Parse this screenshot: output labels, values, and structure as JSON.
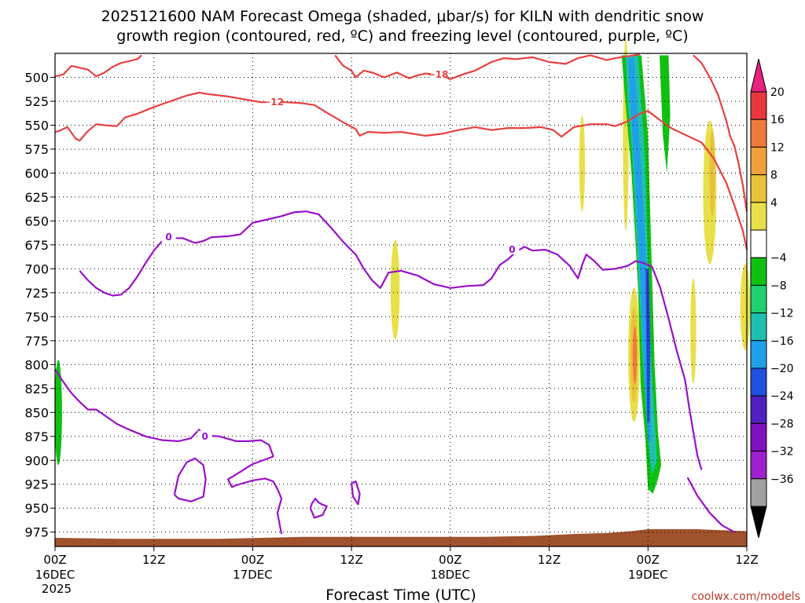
{
  "chart_data": {
    "type": "contour",
    "title_line1": "2025121600 NAM Forecast Omega (shaded, μbar/s) for KILN with dendritic snow",
    "title_line2": "growth region (contoured, red, ºC) and freezing level (contoured, purple, ºC)",
    "xlabel": "Forecast Time (UTC)",
    "credit": "coolwx.com/models",
    "year_label": "2025",
    "x_range_hours": [
      0,
      84
    ],
    "y_range_hPa": [
      475,
      990
    ],
    "y_scale": "pressure",
    "grid": "dotted",
    "x_ticks": [
      {
        "hour": 0,
        "label": "00Z",
        "sub": "16DEC"
      },
      {
        "hour": 12,
        "label": "12Z",
        "sub": ""
      },
      {
        "hour": 24,
        "label": "00Z",
        "sub": "17DEC"
      },
      {
        "hour": 36,
        "label": "12Z",
        "sub": ""
      },
      {
        "hour": 48,
        "label": "00Z",
        "sub": "18DEC"
      },
      {
        "hour": 60,
        "label": "12Z",
        "sub": ""
      },
      {
        "hour": 72,
        "label": "00Z",
        "sub": "19DEC"
      },
      {
        "hour": 84,
        "label": "12Z",
        "sub": ""
      }
    ],
    "y_ticks": [
      500,
      525,
      550,
      575,
      600,
      625,
      650,
      675,
      700,
      725,
      750,
      775,
      800,
      825,
      850,
      875,
      900,
      925,
      950,
      975
    ],
    "colorbar": {
      "labels": [
        "20",
        "16",
        "12",
        "8",
        "4",
        "−4",
        "−8",
        "−12",
        "−16",
        "−20",
        "−24",
        "−28",
        "−32",
        "−36"
      ],
      "colors": [
        "#e8207e",
        "#e8383d",
        "#f07a3c",
        "#f0a03a",
        "#e8c23a",
        "#e8e04a",
        "#ffffff",
        "#10c010",
        "#20d070",
        "#20c0b0",
        "#20a0e8",
        "#2050e0",
        "#5020c0",
        "#8010c0",
        "#a020d0",
        "#a0a0a0",
        "#000000"
      ]
    },
    "series": [
      {
        "name": "-12",
        "color": "#e84040",
        "contours": [
          [
            [
              0,
              557
            ],
            [
              0.5,
              556
            ],
            [
              1.5,
              552
            ],
            [
              2.5,
              564
            ],
            [
              3,
              566
            ],
            [
              4,
              556
            ],
            [
              5,
              549
            ],
            [
              6,
              550
            ],
            [
              7.5,
              551
            ],
            [
              8.5,
              542
            ],
            [
              10,
              538
            ],
            [
              12,
              531
            ],
            [
              14,
              525
            ],
            [
              16,
              519
            ],
            [
              17.5,
              516
            ],
            [
              19,
              518
            ],
            [
              21,
              520
            ],
            [
              23,
              523
            ],
            [
              25,
              526
            ],
            [
              26.5,
              526
            ],
            [
              28,
              526
            ],
            [
              30,
              527
            ],
            [
              31.5,
              529
            ],
            [
              33,
              537
            ],
            [
              35,
              547
            ],
            [
              36.5,
              554
            ],
            [
              37,
              561
            ],
            [
              38,
              557
            ],
            [
              40,
              558
            ],
            [
              42,
              557
            ],
            [
              45,
              561
            ],
            [
              47,
              559
            ],
            [
              49,
              555
            ],
            [
              51,
              552
            ],
            [
              53,
              555
            ],
            [
              55,
              553
            ],
            [
              57,
              553
            ],
            [
              59,
              552
            ],
            [
              60.5,
              555
            ],
            [
              61.5,
              562
            ],
            [
              63,
              552
            ],
            [
              65,
              549
            ],
            [
              67,
              549
            ],
            [
              68,
              551
            ],
            [
              69.5,
              546
            ],
            [
              71,
              538
            ],
            [
              72,
              535
            ],
            [
              73.5,
              545
            ],
            [
              75,
              554
            ],
            [
              77,
              562
            ],
            [
              78.5,
              568
            ],
            [
              80,
              585
            ],
            [
              81.5,
              610
            ],
            [
              82.5,
              634
            ],
            [
              83.5,
              660
            ],
            [
              84,
              680
            ]
          ]
        ]
      },
      {
        "name": "-18",
        "color": "#e84040",
        "contours": [
          [
            [
              0,
              499
            ],
            [
              1,
              497
            ],
            [
              2,
              488
            ],
            [
              3,
              490
            ],
            [
              4,
              492
            ],
            [
              5,
              499
            ],
            [
              6,
              495
            ],
            [
              7,
              489
            ],
            [
              8,
              485
            ],
            [
              9,
              483
            ],
            [
              10,
              481
            ],
            [
              10.5,
              477
            ]
          ],
          [
            [
              34,
              477
            ],
            [
              35,
              488
            ],
            [
              36,
              493
            ],
            [
              36.5,
              500
            ],
            [
              37.5,
              493
            ],
            [
              38.5,
              495
            ],
            [
              40,
              500
            ],
            [
              41.5,
              495
            ],
            [
              43,
              501
            ],
            [
              44,
              498
            ],
            [
              45,
              496
            ],
            [
              46,
              497
            ],
            [
              47,
              498
            ],
            [
              48,
              502
            ],
            [
              49.5,
              497
            ],
            [
              51,
              493
            ],
            [
              53,
              484
            ],
            [
              54.5,
              480
            ],
            [
              56,
              481
            ],
            [
              58,
              479
            ],
            [
              60,
              484
            ],
            [
              62,
              486
            ],
            [
              63.5,
              480
            ],
            [
              65,
              477
            ],
            [
              67,
              482
            ],
            [
              68,
              480
            ],
            [
              69.5,
              478
            ],
            [
              71,
              476
            ]
          ],
          [
            [
              77.5,
              477
            ],
            [
              78.5,
              485
            ],
            [
              79.5,
              500
            ],
            [
              80.5,
              518
            ],
            [
              81.5,
              545
            ],
            [
              82,
              562
            ],
            [
              82.5,
              572
            ],
            [
              83,
              590
            ],
            [
              83.5,
              612
            ],
            [
              84,
              640
            ]
          ]
        ]
      },
      {
        "name": "0",
        "color": "#9a10c8",
        "contours": [
          [
            [
              0,
              805
            ],
            [
              1,
              818
            ],
            [
              2,
              830
            ],
            [
              3,
              839
            ],
            [
              4,
              847
            ],
            [
              5,
              847
            ],
            [
              6,
              853
            ],
            [
              7.5,
              862
            ],
            [
              9,
              868
            ],
            [
              11,
              875
            ],
            [
              13,
              879
            ],
            [
              15,
              880
            ],
            [
              16.5,
              877
            ],
            [
              17.5,
              868
            ],
            [
              18,
              874
            ],
            [
              20,
              875
            ],
            [
              22,
              880
            ],
            [
              23.5,
              880
            ],
            [
              25,
              879
            ],
            [
              26,
              884
            ],
            [
              26.5,
              896
            ],
            [
              24,
              904
            ],
            [
              22.5,
              912
            ],
            [
              21,
              920
            ],
            [
              21.5,
              928
            ],
            [
              22,
              926
            ],
            [
              24,
              921
            ],
            [
              25.5,
              919
            ],
            [
              26.5,
              922
            ],
            [
              27,
              930
            ],
            [
              27.5,
              940
            ],
            [
              27,
              955
            ],
            [
              27.5,
              977
            ]
          ]
        ]
      },
      {
        "name": "0",
        "color": "#9a10c8",
        "contours": [
          [
            [
              3,
              702
            ],
            [
              4,
              712
            ],
            [
              5,
              720
            ],
            [
              6,
              725
            ],
            [
              7,
              728
            ],
            [
              8,
              727
            ],
            [
              9,
              720
            ],
            [
              10,
              708
            ],
            [
              11,
              694
            ],
            [
              12,
              681
            ],
            [
              13,
              671
            ],
            [
              14,
              668
            ],
            [
              15.5,
              668
            ],
            [
              17,
              673
            ],
            [
              18,
              671
            ],
            [
              19,
              667
            ],
            [
              21,
              666
            ],
            [
              22.5,
              664
            ],
            [
              24,
              652
            ],
            [
              26,
              648
            ],
            [
              27.5,
              645
            ],
            [
              29,
              641
            ],
            [
              30.5,
              640
            ],
            [
              32,
              643
            ],
            [
              33.5,
              657
            ],
            [
              35,
              672
            ],
            [
              36.5,
              685
            ],
            [
              37.5,
              700
            ],
            [
              38.5,
              712
            ],
            [
              39.5,
              720
            ],
            [
              40.5,
              704
            ],
            [
              42,
              702
            ],
            [
              44,
              707
            ],
            [
              46,
              716
            ],
            [
              48,
              720
            ],
            [
              50,
              718
            ],
            [
              52,
              717
            ],
            [
              53,
              710
            ],
            [
              54,
              696
            ],
            [
              55,
              690
            ],
            [
              56,
              682
            ],
            [
              57,
              677
            ],
            [
              58,
              681
            ],
            [
              59.5,
              680
            ],
            [
              61,
              685
            ],
            [
              62.5,
              697
            ],
            [
              63.5,
              710
            ],
            [
              64,
              696
            ],
            [
              64.5,
              685
            ],
            [
              65.5,
              692
            ],
            [
              66.5,
              701
            ],
            [
              68,
              700
            ],
            [
              69.5,
              697
            ],
            [
              70.5,
              692
            ],
            [
              71.5,
              694
            ],
            [
              72.5,
              698
            ],
            [
              73.5,
              720
            ],
            [
              74.5,
              752
            ],
            [
              75.5,
              786
            ],
            [
              76.5,
              816
            ],
            [
              77,
              845
            ],
            [
              77.5,
              870
            ],
            [
              78,
              895
            ],
            [
              78.5,
              910
            ]
          ]
        ]
      },
      {
        "name": "",
        "color": "#9a10c8",
        "contours": [
          [
            [
              76.8,
              918
            ],
            [
              78,
              937
            ],
            [
              79.5,
              955
            ],
            [
              81,
              968
            ],
            [
              82.5,
              975
            ]
          ],
          [
            [
              14.5,
              936
            ],
            [
              15,
              916
            ],
            [
              16,
              902
            ],
            [
              17,
              898
            ],
            [
              18,
              905
            ],
            [
              18.3,
              920
            ],
            [
              18,
              938
            ],
            [
              16.5,
              943
            ],
            [
              15,
              940
            ],
            [
              14.5,
              936
            ]
          ],
          [
            [
              31,
              950
            ],
            [
              31.2,
              945
            ],
            [
              31.6,
              940
            ],
            [
              32,
              944
            ],
            [
              32.4,
              946
            ],
            [
              33,
              948
            ],
            [
              32.5,
              957
            ],
            [
              31.5,
              960
            ],
            [
              31,
              950
            ]
          ],
          [
            [
              36,
              924
            ],
            [
              36.5,
              922
            ],
            [
              37,
              935
            ],
            [
              36.8,
              946
            ],
            [
              36.2,
              938
            ],
            [
              36,
              924
            ]
          ]
        ]
      },
      {
        "name": "omega-shaded",
        "color": "#20c0b0",
        "contours": []
      }
    ]
  }
}
